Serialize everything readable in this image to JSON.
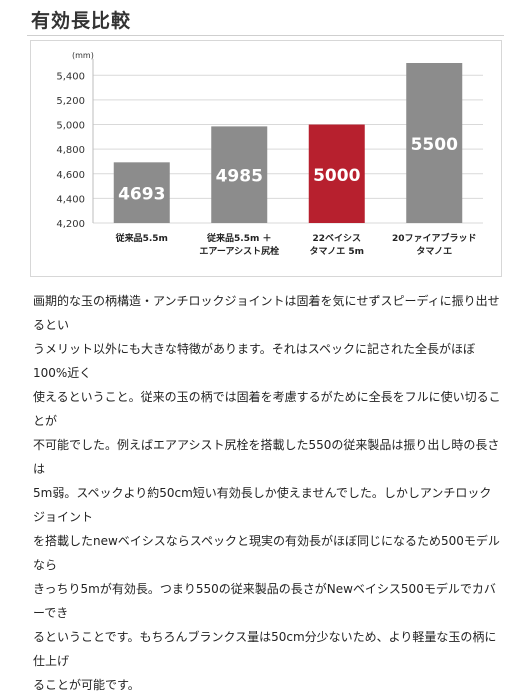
{
  "page": {
    "title": "有効長比較",
    "paragraph_lines": [
      "画期的な玉の柄構造・アンチロックジョイントは固着を気にせずスピーディに振り出せるとい",
      "うメリット以外にも大きな特徴があります。それはスペックに記された全長がほぼ100%近く",
      "使えるということ。従来の玉の柄では固着を考慮するがために全長をフルに使い切ることが",
      "不可能でした。例えばエアアシスト尻栓を搭載した550の従来製品は振り出し時の長さは",
      "5m弱。スペックより約50cm短い有効長しか使えませんでした。しかしアンチロックジョイント",
      "を搭載したnewベイシスならスペックと現実の有効長がほぼ同じになるため500モデルなら",
      "きっちり5mが有効長。つまり550の従来製品の長さがNewベイシス500モデルでカバーでき",
      "るということです。もちろんブランクス量は50cm分少ないため、より軽量な玉の柄に仕上げ",
      "ることが可能です。"
    ]
  },
  "chart_data": {
    "type": "bar",
    "unit_label": "(mm)",
    "ylim": [
      4200,
      5500
    ],
    "yticks": [
      "4,200",
      "4,400",
      "4,600",
      "4,800",
      "5,000",
      "5,200",
      "5,400"
    ],
    "ytick_values": [
      4200,
      4400,
      4600,
      4800,
      5000,
      5200,
      5400
    ],
    "grid": true,
    "categories": [
      [
        "従来品5.5m"
      ],
      [
        "従来品5.5m ＋",
        "エアーアシスト尻栓"
      ],
      [
        "22ベイシス",
        "タマノエ 5m"
      ],
      [
        "20ファイアブラッド",
        "タマノエ"
      ]
    ],
    "values": [
      4693,
      4985,
      5000,
      5500
    ],
    "value_labels": [
      "4693",
      "4985",
      "5000",
      "5500"
    ],
    "bar_colors": [
      "#8c8c8c",
      "#8c8c8c",
      "#b7202e",
      "#8c8c8c"
    ]
  }
}
